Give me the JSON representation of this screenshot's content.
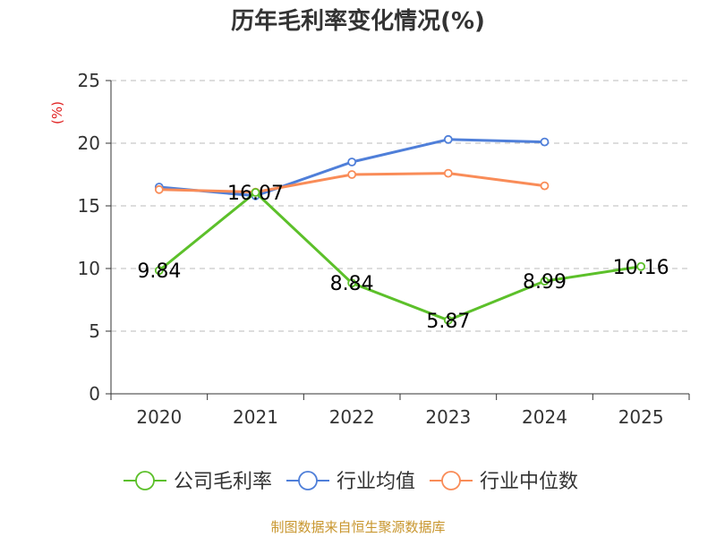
{
  "chart_data": {
    "type": "line",
    "title": "历年毛利率变化情况(%)",
    "ylabel": "(%)",
    "xlabel": "",
    "categories": [
      "2020",
      "2021",
      "2022",
      "2023",
      "2024",
      "2025"
    ],
    "ylim": [
      0,
      25
    ],
    "yticks": [
      0,
      5,
      10,
      15,
      20,
      25
    ],
    "grid": true,
    "legend_position": "bottom",
    "series": [
      {
        "name": "公司毛利率",
        "color": "#5cc02a",
        "values": [
          9.84,
          16.07,
          8.84,
          5.87,
          8.99,
          10.16
        ],
        "labels": [
          "9.84",
          "16.07",
          "8.84",
          "5.87",
          "8.99",
          "10.16"
        ]
      },
      {
        "name": "行业均值",
        "color": "#4f7fd9",
        "values": [
          16.5,
          15.8,
          18.5,
          20.3,
          20.1,
          null
        ]
      },
      {
        "name": "行业中位数",
        "color": "#f98c58",
        "values": [
          16.3,
          16.1,
          17.5,
          17.6,
          16.6,
          null
        ]
      }
    ],
    "ylabel_color": "#e02020"
  },
  "source": {
    "text": "制图数据来自恒生聚源数据库",
    "color": "#c8962e"
  }
}
